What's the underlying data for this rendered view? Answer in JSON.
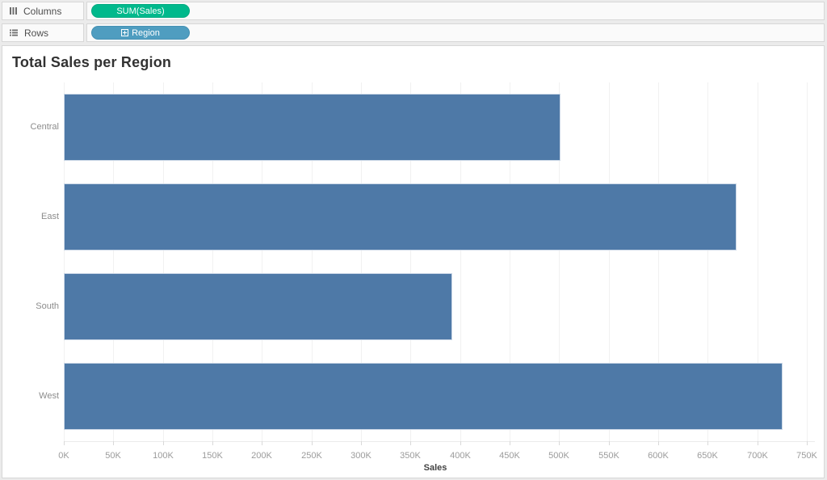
{
  "shelves": {
    "columns": {
      "label": "Columns",
      "pill": "SUM(Sales)"
    },
    "rows": {
      "label": "Rows",
      "pill": "Region"
    }
  },
  "colors": {
    "measure_pill_green": "#00b98c",
    "dimension_pill_blue": "#4f9dc0",
    "bar_blue": "#4e79a7"
  },
  "chart_data": {
    "type": "bar",
    "orientation": "horizontal",
    "title": "Total Sales per Region",
    "categories": [
      "Central",
      "East",
      "South",
      "West"
    ],
    "values": [
      501240,
      678781,
      391722,
      725458
    ],
    "xlabel": "Sales",
    "ylabel": "Region",
    "x_ticks": [
      "0K",
      "50K",
      "100K",
      "150K",
      "200K",
      "250K",
      "300K",
      "350K",
      "400K",
      "450K",
      "500K",
      "550K",
      "600K",
      "650K",
      "700K",
      "750K"
    ],
    "xlim": [
      0,
      750000
    ],
    "grid": true,
    "legend": false,
    "bar_color": "#4e79a7"
  }
}
